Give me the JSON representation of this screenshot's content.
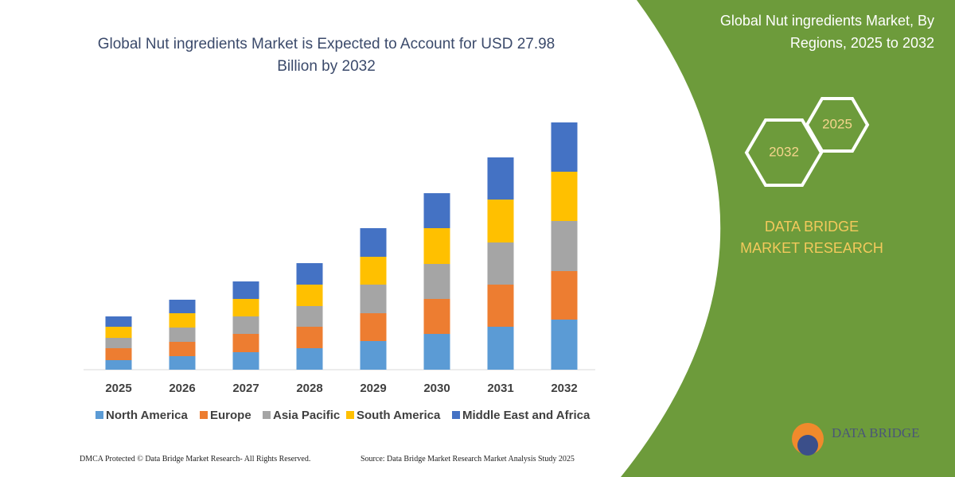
{
  "chart_data": {
    "type": "bar",
    "stacked": true,
    "title": "Global Nut ingredients Market is Expected to Account for USD 27.98 Billion by 2032",
    "categories": [
      "2025",
      "2026",
      "2027",
      "2028",
      "2029",
      "2030",
      "2031",
      "2032"
    ],
    "series": [
      {
        "name": "North America",
        "color": "#5b9bd5",
        "values": [
          12,
          17,
          22,
          27,
          36,
          45,
          54,
          63
        ]
      },
      {
        "name": "Europe",
        "color": "#ed7d31",
        "values": [
          15,
          18,
          23,
          27,
          35,
          44,
          53,
          61
        ]
      },
      {
        "name": "Asia Pacific",
        "color": "#a5a5a5",
        "values": [
          13,
          18,
          22,
          26,
          36,
          44,
          53,
          63
        ]
      },
      {
        "name": "South America",
        "color": "#ffc000",
        "values": [
          14,
          18,
          22,
          27,
          35,
          45,
          54,
          62
        ]
      },
      {
        "name": "Middle East and Africa",
        "color": "#4472c4",
        "values": [
          13,
          17,
          22,
          27,
          36,
          44,
          53,
          62
        ]
      }
    ]
  },
  "side_panel": {
    "title": "Global Nut ingredients Market, By Regions, 2025 to 2032",
    "hexagons": [
      "2025",
      "2032"
    ],
    "brand": "DATA BRIDGE MARKET RESEARCH",
    "logo_text": "DATA BRIDGE"
  },
  "footer": {
    "copyright": "DMCA Protected © Data Bridge Market Research- All Rights Reserved.",
    "source": "Source: Data Bridge Market Research Market Analysis Study 2025"
  }
}
